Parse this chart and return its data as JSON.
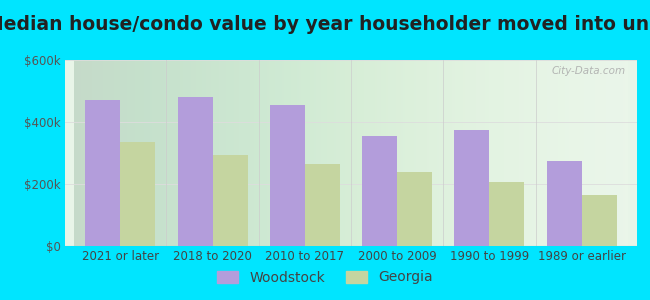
{
  "title": "Median house/condo value by year householder moved into unit",
  "categories": [
    "2021 or later",
    "2018 to 2020",
    "2010 to 2017",
    "2000 to 2009",
    "1990 to 1999",
    "1989 or earlier"
  ],
  "woodstock": [
    470000,
    480000,
    455000,
    355000,
    375000,
    275000
  ],
  "georgia": [
    335000,
    295000,
    265000,
    240000,
    205000,
    165000
  ],
  "woodstock_color": "#b39ddb",
  "georgia_color": "#c5d5a0",
  "background_outer": "#00e5ff",
  "ylim": [
    0,
    600000
  ],
  "yticks": [
    0,
    200000,
    400000,
    600000
  ],
  "ytick_labels": [
    "$0",
    "$200k",
    "$400k",
    "$600k"
  ],
  "bar_width": 0.38,
  "legend_woodstock": "Woodstock",
  "legend_georgia": "Georgia",
  "title_fontsize": 13.5,
  "tick_fontsize": 8.5,
  "legend_fontsize": 10
}
